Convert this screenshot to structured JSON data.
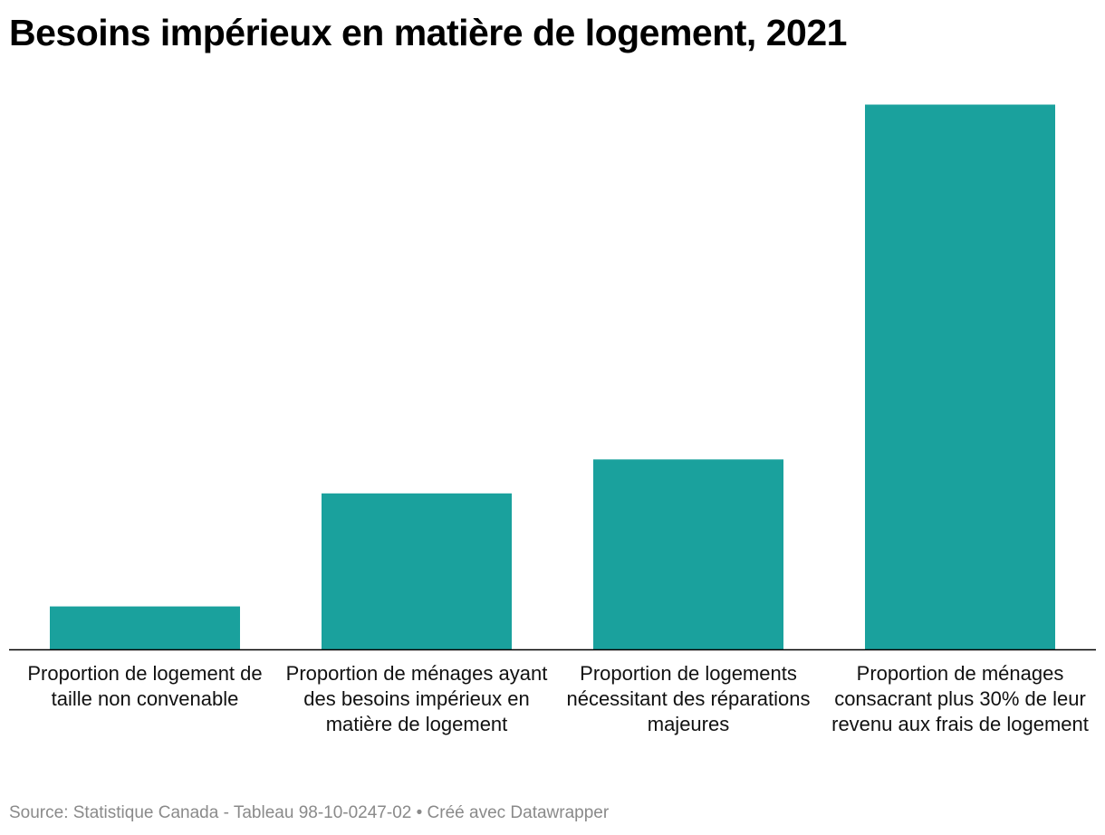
{
  "chart_data": {
    "type": "bar",
    "title": "Besoins impérieux en matière de logement, 2021",
    "categories": [
      "Proportion de logement de taille non convenable",
      "Proportion de ménages ayant des besoins impérieux en matière de logement",
      "Proportion de logements nécessitant des réparations majeures",
      "Proportion de ménages consacrant plus 30% de leur revenu aux frais de logement"
    ],
    "values": [
      1.9,
      6.9,
      8.4,
      24.1
    ],
    "xlabel": "",
    "ylabel": "",
    "ylim": [
      0,
      25
    ],
    "grid": false,
    "color": "#1aa19d",
    "baseline_color": "#000000"
  },
  "footer": {
    "source": "Source: Statistique Canada - Tableau 98-10-0247-02 • Créé avec Datawrapper"
  }
}
